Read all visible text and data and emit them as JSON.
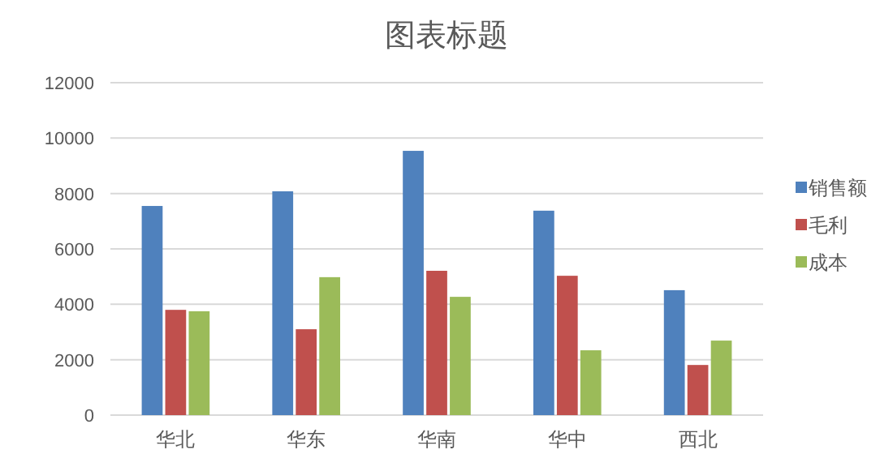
{
  "chart_data": {
    "type": "bar",
    "title": "图表标题",
    "categories": [
      "华北",
      "华东",
      "华南",
      "华中",
      "西北"
    ],
    "series": [
      {
        "name": "销售额",
        "color": "#4f81bd",
        "values": [
          7550,
          8080,
          9540,
          7380,
          4510
        ]
      },
      {
        "name": "毛利",
        "color": "#c0504d",
        "values": [
          3800,
          3100,
          5210,
          5030,
          1810
        ]
      },
      {
        "name": "成本",
        "color": "#9bbb59",
        "values": [
          3750,
          4980,
          4270,
          2340,
          2690
        ]
      }
    ],
    "ylim": [
      0,
      12000
    ],
    "yticks": [
      0,
      2000,
      4000,
      6000,
      8000,
      10000,
      12000
    ],
    "grid": "y",
    "legend": "right"
  }
}
